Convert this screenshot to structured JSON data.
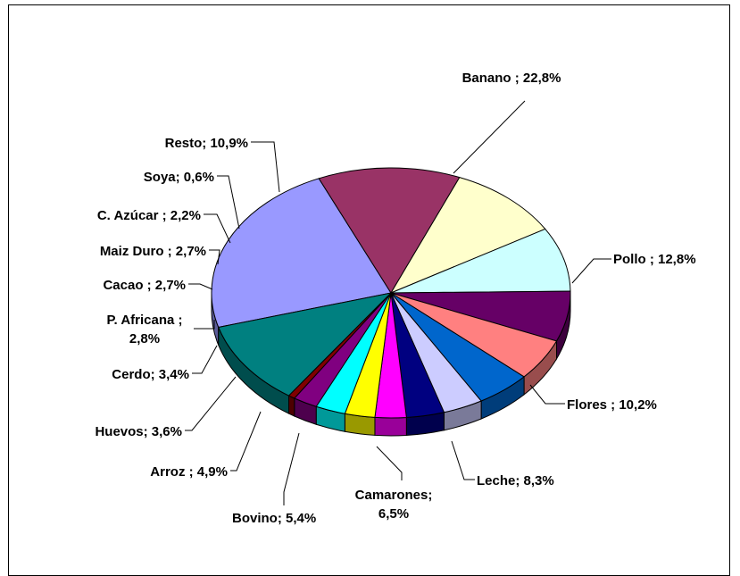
{
  "chart_data": {
    "type": "pie",
    "title": "",
    "slices": [
      {
        "label": "Banano",
        "value": 22.8,
        "display": "Banano ; 22,8%",
        "color": "#9999FF"
      },
      {
        "label": "Pollo",
        "value": 12.8,
        "display": "Pollo ; 12,8%",
        "color": "#993366"
      },
      {
        "label": "Flores",
        "value": 10.2,
        "display": "Flores ; 10,2%",
        "color": "#FFFFCC"
      },
      {
        "label": "Leche",
        "value": 8.3,
        "display": "Leche; 8,3%",
        "color": "#CCFFFF"
      },
      {
        "label": "Camarones",
        "value": 6.5,
        "display": "Camarones; 6,5%",
        "color": "#660066"
      },
      {
        "label": "Bovino",
        "value": 5.4,
        "display": "Bovino; 5,4%",
        "color": "#FF8080"
      },
      {
        "label": "Arroz",
        "value": 4.9,
        "display": "Arroz ; 4,9%",
        "color": "#0066CC"
      },
      {
        "label": "Huevos",
        "value": 3.6,
        "display": "Huevos; 3,6%",
        "color": "#CCCCFF"
      },
      {
        "label": "Cerdo",
        "value": 3.4,
        "display": "Cerdo; 3,4%",
        "color": "#000080"
      },
      {
        "label": "P. Africana",
        "value": 2.8,
        "display": "P. Africana ; 2,8%",
        "color": "#FF00FF"
      },
      {
        "label": "Cacao",
        "value": 2.7,
        "display": "Cacao ; 2,7%",
        "color": "#FFFF00"
      },
      {
        "label": "Maiz Duro",
        "value": 2.7,
        "display": "Maiz Duro ; 2,7%",
        "color": "#00FFFF"
      },
      {
        "label": "C. Azúcar",
        "value": 2.2,
        "display": "C. Azúcar ; 2,2%",
        "color": "#800080"
      },
      {
        "label": "Soya",
        "value": 0.6,
        "display": "Soya; 0,6%",
        "color": "#800000"
      },
      {
        "label": "Resto",
        "value": 10.9,
        "display": "Resto; 10,9%",
        "color": "#008080"
      }
    ]
  }
}
